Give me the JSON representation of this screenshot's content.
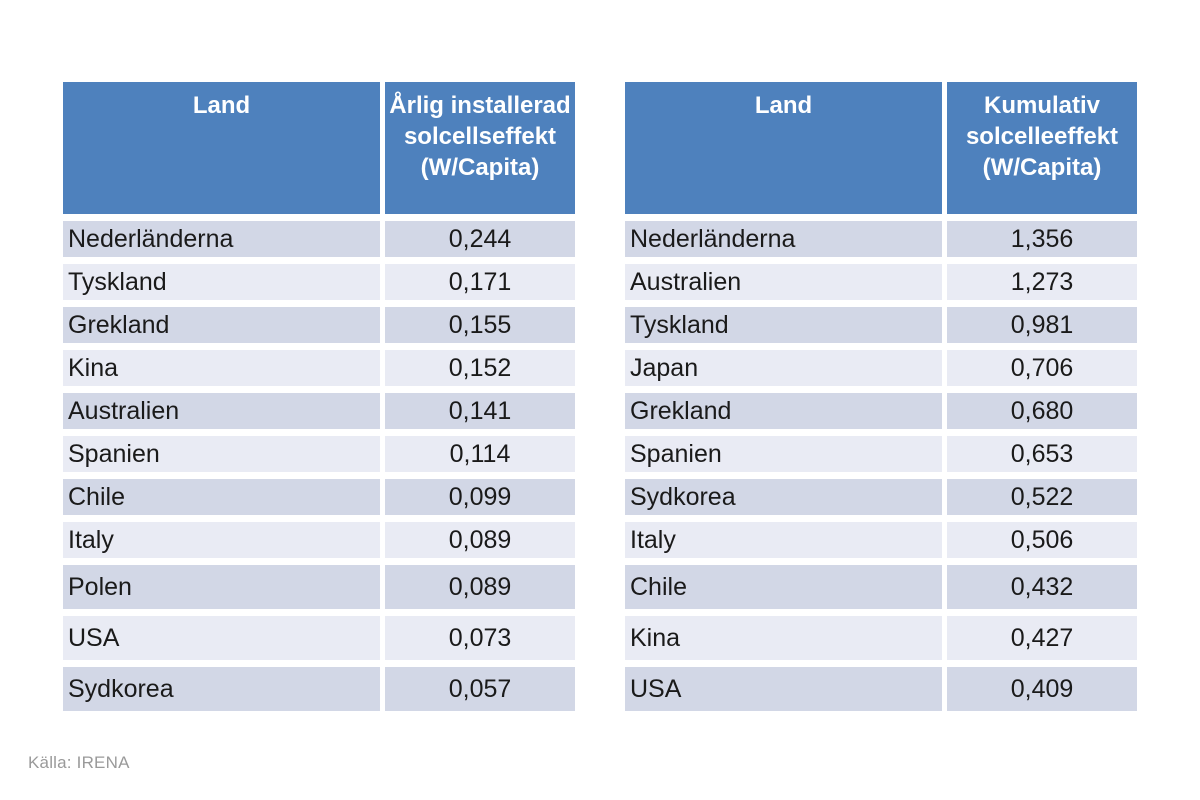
{
  "source_note": "Källa: IRENA",
  "colors": {
    "page_bg": "#FFFFFF",
    "header_bg": "#4E81BD",
    "header_text": "#FFFFFF",
    "row_odd_bg": "#D2D7E6",
    "row_even_bg": "#E9EBF4",
    "body_text": "#1A1A1A",
    "source_text": "#9A9A9A"
  },
  "chart_data": [
    {
      "type": "table",
      "columns": [
        "Land",
        "Årlig installerad solcellseffekt (W/Capita)"
      ],
      "rows": [
        [
          "Nederländerna",
          "0,244"
        ],
        [
          "Tyskland",
          "0,171"
        ],
        [
          "Grekland",
          "0,155"
        ],
        [
          "Kina",
          "0,152"
        ],
        [
          "Australien",
          "0,141"
        ],
        [
          "Spanien",
          "0,114"
        ],
        [
          "Chile",
          "0,099"
        ],
        [
          "Italy",
          "0,089"
        ],
        [
          "Polen",
          "0,089"
        ],
        [
          "USA",
          "0,073"
        ],
        [
          "Sydkorea",
          "0,057"
        ]
      ]
    },
    {
      "type": "table",
      "columns": [
        "Land",
        "Kumulativ solcelleeffekt (W/Capita)"
      ],
      "rows": [
        [
          "Nederländerna",
          "1,356"
        ],
        [
          "Australien",
          "1,273"
        ],
        [
          "Tyskland",
          "0,981"
        ],
        [
          "Japan",
          "0,706"
        ],
        [
          "Grekland",
          "0,680"
        ],
        [
          "Spanien",
          "0,653"
        ],
        [
          "Sydkorea",
          "0,522"
        ],
        [
          "Italy",
          "0,506"
        ],
        [
          "Chile",
          "0,432"
        ],
        [
          "Kina",
          "0,427"
        ],
        [
          "USA",
          "0,409"
        ]
      ]
    }
  ]
}
